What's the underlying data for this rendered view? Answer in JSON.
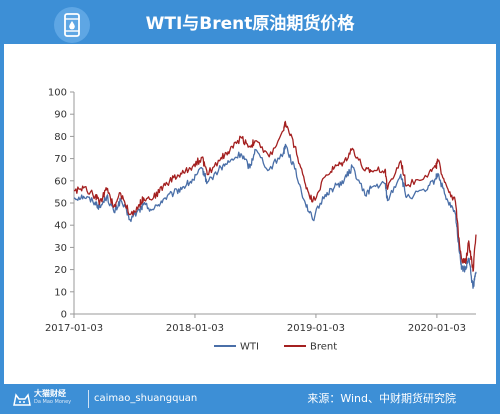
{
  "header": {
    "title": "WTI与Brent原油期货价格",
    "icon": "oil-barrel-icon"
  },
  "footer": {
    "brand_cn": "大猫财经",
    "brand_en": "Da Mao Money",
    "handle": "caimao_shuangquan",
    "source": "来源：Wind、中财期货研究院"
  },
  "colors": {
    "frame": "#3d8fd6",
    "wti": "#4a6fa8",
    "brent": "#a42020"
  },
  "chart_data": {
    "type": "line",
    "title": "",
    "xlabel": "",
    "ylabel": "",
    "ylim": [
      0,
      100
    ],
    "yticks": [
      0,
      10,
      20,
      30,
      40,
      50,
      60,
      70,
      80,
      90,
      100
    ],
    "xlim": [
      "2017-01-03",
      "2020-04-30"
    ],
    "xticks": [
      "2017-01-03",
      "2018-01-03",
      "2019-01-03",
      "2020-01-03"
    ],
    "grid": false,
    "legend": "bottom-center",
    "series": [
      {
        "name": "WTI",
        "color": "#4a6fa8",
        "points": [
          [
            "2017-01-03",
            52.3
          ],
          [
            "2017-02-01",
            53.0
          ],
          [
            "2017-03-08",
            50.3
          ],
          [
            "2017-03-22",
            48.0
          ],
          [
            "2017-04-12",
            53.0
          ],
          [
            "2017-05-04",
            45.8
          ],
          [
            "2017-05-24",
            51.3
          ],
          [
            "2017-06-21",
            42.5
          ],
          [
            "2017-07-20",
            46.8
          ],
          [
            "2017-08-01",
            49.2
          ],
          [
            "2017-08-31",
            47.0
          ],
          [
            "2017-09-29",
            51.6
          ],
          [
            "2017-10-31",
            54.4
          ],
          [
            "2017-11-30",
            57.4
          ],
          [
            "2017-12-29",
            60.4
          ],
          [
            "2018-01-25",
            65.5
          ],
          [
            "2018-02-09",
            59.2
          ],
          [
            "2018-03-23",
            65.9
          ],
          [
            "2018-04-18",
            68.5
          ],
          [
            "2018-05-22",
            72.2
          ],
          [
            "2018-06-18",
            65.8
          ],
          [
            "2018-07-03",
            74.1
          ],
          [
            "2018-08-15",
            65.0
          ],
          [
            "2018-09-28",
            73.2
          ],
          [
            "2018-10-03",
            76.4
          ],
          [
            "2018-10-31",
            65.3
          ],
          [
            "2018-11-30",
            50.9
          ],
          [
            "2018-12-24",
            42.5
          ],
          [
            "2019-01-31",
            53.8
          ],
          [
            "2019-02-28",
            57.2
          ],
          [
            "2019-03-29",
            60.1
          ],
          [
            "2019-04-23",
            66.3
          ],
          [
            "2019-05-31",
            53.5
          ],
          [
            "2019-06-20",
            57.1
          ],
          [
            "2019-07-31",
            58.6
          ],
          [
            "2019-08-07",
            51.1
          ],
          [
            "2019-09-16",
            62.9
          ],
          [
            "2019-10-03",
            52.5
          ],
          [
            "2019-11-29",
            55.2
          ],
          [
            "2019-12-31",
            61.1
          ],
          [
            "2020-01-06",
            63.3
          ],
          [
            "2020-01-31",
            51.6
          ],
          [
            "2020-02-28",
            45.0
          ],
          [
            "2020-03-09",
            31.1
          ],
          [
            "2020-03-18",
            20.4
          ],
          [
            "2020-03-30",
            20.1
          ],
          [
            "2020-04-08",
            25.1
          ],
          [
            "2020-04-21",
            11.6
          ],
          [
            "2020-04-30",
            19.0
          ]
        ]
      },
      {
        "name": "Brent",
        "color": "#a42020",
        "points": [
          [
            "2017-01-03",
            55.5
          ],
          [
            "2017-02-01",
            56.8
          ],
          [
            "2017-03-08",
            53.1
          ],
          [
            "2017-03-22",
            50.6
          ],
          [
            "2017-04-12",
            55.9
          ],
          [
            "2017-05-04",
            48.4
          ],
          [
            "2017-05-24",
            54.2
          ],
          [
            "2017-06-21",
            44.8
          ],
          [
            "2017-07-20",
            49.3
          ],
          [
            "2017-08-01",
            52.3
          ],
          [
            "2017-08-31",
            52.4
          ],
          [
            "2017-09-29",
            57.5
          ],
          [
            "2017-10-31",
            61.4
          ],
          [
            "2017-11-30",
            63.6
          ],
          [
            "2017-12-29",
            66.9
          ],
          [
            "2018-01-25",
            70.5
          ],
          [
            "2018-02-09",
            62.8
          ],
          [
            "2018-03-23",
            70.5
          ],
          [
            "2018-04-18",
            73.5
          ],
          [
            "2018-05-22",
            79.6
          ],
          [
            "2018-06-18",
            75.3
          ],
          [
            "2018-07-03",
            78.0
          ],
          [
            "2018-08-15",
            70.8
          ],
          [
            "2018-09-28",
            82.7
          ],
          [
            "2018-10-03",
            86.3
          ],
          [
            "2018-10-31",
            75.5
          ],
          [
            "2018-11-30",
            59.5
          ],
          [
            "2018-12-24",
            50.5
          ],
          [
            "2019-01-31",
            61.9
          ],
          [
            "2019-02-28",
            66.0
          ],
          [
            "2019-03-29",
            68.4
          ],
          [
            "2019-04-23",
            74.6
          ],
          [
            "2019-05-31",
            64.5
          ],
          [
            "2019-06-20",
            64.5
          ],
          [
            "2019-07-31",
            65.2
          ],
          [
            "2019-08-07",
            56.2
          ],
          [
            "2019-09-16",
            69.0
          ],
          [
            "2019-10-03",
            57.7
          ],
          [
            "2019-11-29",
            62.4
          ],
          [
            "2019-12-31",
            66.0
          ],
          [
            "2020-01-06",
            68.9
          ],
          [
            "2020-01-31",
            58.2
          ],
          [
            "2020-02-28",
            50.5
          ],
          [
            "2020-03-09",
            34.4
          ],
          [
            "2020-03-18",
            25.0
          ],
          [
            "2020-03-30",
            22.8
          ],
          [
            "2020-04-08",
            32.9
          ],
          [
            "2020-04-21",
            19.3
          ],
          [
            "2020-04-30",
            35.8
          ]
        ]
      }
    ]
  }
}
